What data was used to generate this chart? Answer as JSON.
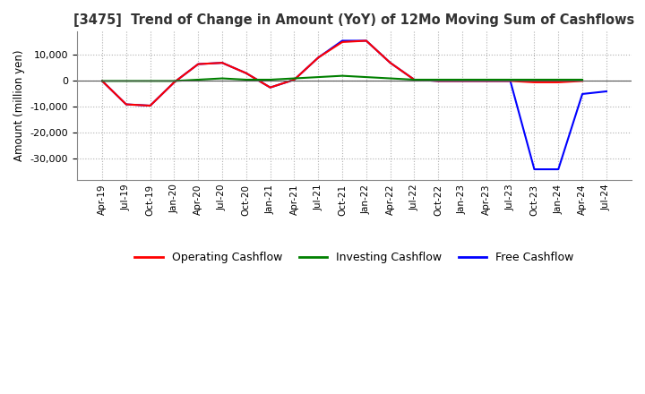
{
  "title": "[3475]  Trend of Change in Amount (YoY) of 12Mo Moving Sum of Cashflows",
  "ylabel": "Amount (million yen)",
  "background_color": "#ffffff",
  "grid_color": "#b0b0b0",
  "x_labels": [
    "Apr-19",
    "Jul-19",
    "Oct-19",
    "Jan-20",
    "Apr-20",
    "Jul-20",
    "Oct-20",
    "Jan-21",
    "Apr-21",
    "Jul-21",
    "Oct-21",
    "Jan-22",
    "Apr-22",
    "Jul-22",
    "Oct-22",
    "Jan-23",
    "Apr-23",
    "Jul-23",
    "Oct-23",
    "Jan-24",
    "Apr-24",
    "Jul-24"
  ],
  "operating_cashflow": [
    0,
    -9000,
    -9500,
    -500,
    6500,
    7000,
    3000,
    -2500,
    500,
    9000,
    15000,
    15500,
    7000,
    500,
    0,
    0,
    0,
    0,
    -500,
    -500,
    0,
    null
  ],
  "investing_cashflow": [
    0,
    0,
    0,
    0,
    500,
    1000,
    500,
    500,
    1000,
    1500,
    2000,
    1500,
    1000,
    500,
    500,
    500,
    500,
    500,
    500,
    500,
    500,
    null
  ],
  "free_cashflow": [
    0,
    -9000,
    -9500,
    -500,
    6500,
    7000,
    3000,
    -2500,
    500,
    9000,
    15500,
    15500,
    7000,
    500,
    0,
    0,
    0,
    0,
    -34000,
    -34000,
    -5000,
    -4000
  ],
  "ylim": [
    -38000,
    19000
  ],
  "yticks": [
    10000,
    0,
    -10000,
    -20000,
    -30000
  ],
  "line_colors": {
    "operating": "#ff0000",
    "investing": "#008000",
    "free": "#0000ff"
  },
  "legend_labels": [
    "Operating Cashflow",
    "Investing Cashflow",
    "Free Cashflow"
  ]
}
